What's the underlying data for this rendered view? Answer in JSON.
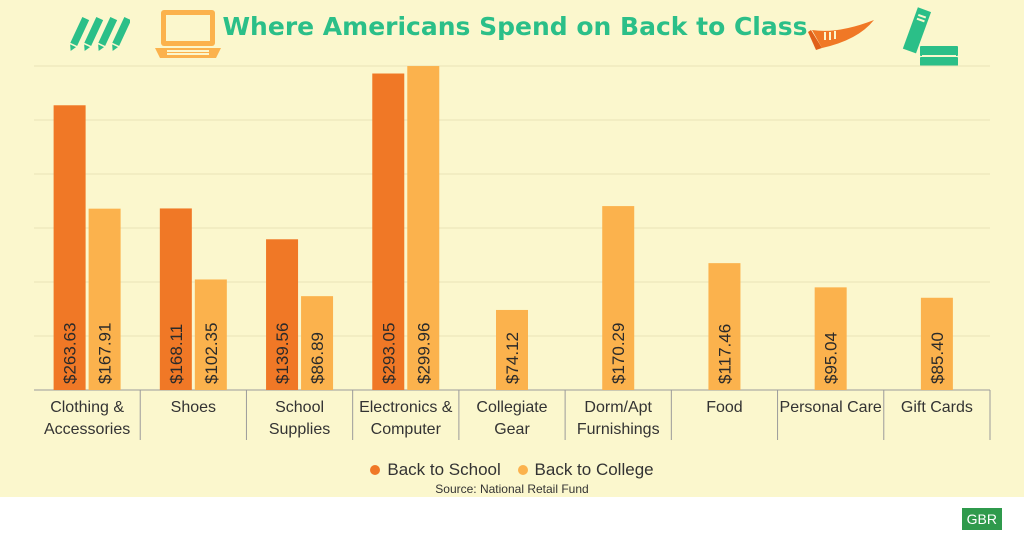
{
  "header": {
    "title": "Where Americans Spend on Back to Class"
  },
  "icons": [
    "pencils-icon",
    "laptop-icon",
    "pennant-icon",
    "books-icon"
  ],
  "colors": {
    "school": "#f07826",
    "college": "#fbb24d",
    "title": "#2bbf88",
    "background": "#fbf7cd",
    "badge": "#2f9a4c"
  },
  "chart_data": {
    "type": "bar",
    "title": "Where Americans Spend on Back to Class",
    "categories": [
      [
        "Clothing &",
        "Accessories"
      ],
      [
        "Shoes"
      ],
      [
        "School",
        "Supplies"
      ],
      [
        "Electronics &",
        "Computer"
      ],
      [
        "Collegiate",
        "Gear"
      ],
      [
        "Dorm/Apt",
        "Furnishings"
      ],
      [
        "Food"
      ],
      [
        "Personal Care"
      ],
      [
        "Gift Cards"
      ]
    ],
    "series": [
      {
        "name": "Back to School",
        "color": "#f07826",
        "values": [
          263.63,
          168.11,
          139.56,
          293.05,
          null,
          null,
          null,
          null,
          null
        ],
        "labels": [
          "$263.63",
          "$168.11",
          "$139.56",
          "$293.05",
          "",
          "",
          "",
          "",
          ""
        ]
      },
      {
        "name": "Back to College",
        "color": "#fbb24d",
        "values": [
          167.91,
          102.35,
          86.89,
          299.96,
          74.12,
          170.29,
          117.46,
          95.04,
          85.4
        ],
        "labels": [
          "$167.91",
          "$102.35",
          "$86.89",
          "$299.96",
          "$74.12",
          "$170.29",
          "$117.46",
          "$95.04",
          "$85.40"
        ]
      }
    ],
    "ylim": [
      0,
      300
    ],
    "grid": true,
    "legend_position": "bottom"
  },
  "footer": {
    "source": "Source: National Retail Fund",
    "badge": "GBR"
  }
}
